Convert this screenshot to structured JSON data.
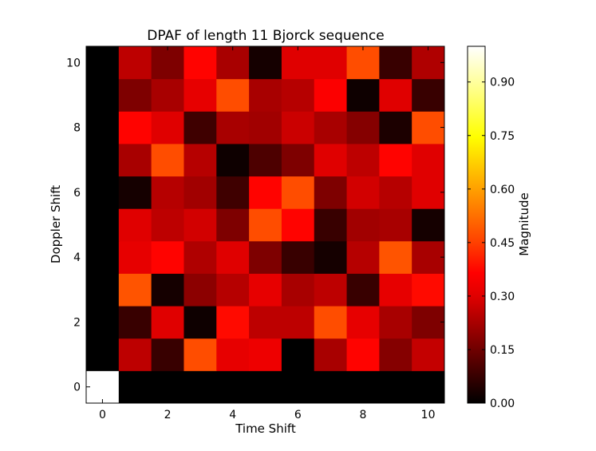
{
  "chart_data": {
    "type": "heatmap",
    "title": "DPAF of length 11 Bjorck sequence",
    "xlabel": "Time Shift",
    "ylabel": "Doppler Shift",
    "colorbar_label": "Magnitude",
    "colormap": "hot",
    "x_ticks": [
      "0",
      "2",
      "4",
      "6",
      "8",
      "10"
    ],
    "y_ticks": [
      "0",
      "2",
      "4",
      "6",
      "8",
      "10"
    ],
    "colorbar_ticks": [
      "0.00",
      "0.15",
      "0.30",
      "0.45",
      "0.60",
      "0.75",
      "0.90"
    ],
    "value_range": [
      0,
      1
    ],
    "x": [
      0,
      1,
      2,
      3,
      4,
      5,
      6,
      7,
      8,
      9,
      10
    ],
    "y": [
      0,
      1,
      2,
      3,
      4,
      5,
      6,
      7,
      8,
      9,
      10
    ],
    "grid": false,
    "values": [
      [
        1.0,
        0.0,
        0.0,
        0.0,
        0.0,
        0.0,
        0.0,
        0.0,
        0.0,
        0.0,
        0.0
      ],
      [
        0.0,
        0.27,
        0.08,
        0.48,
        0.33,
        0.34,
        0.0,
        0.24,
        0.37,
        0.19,
        0.28
      ],
      [
        0.0,
        0.08,
        0.32,
        0.02,
        0.38,
        0.27,
        0.27,
        0.48,
        0.33,
        0.24,
        0.18
      ],
      [
        0.0,
        0.49,
        0.03,
        0.2,
        0.26,
        0.33,
        0.24,
        0.27,
        0.08,
        0.33,
        0.38
      ],
      [
        0.0,
        0.33,
        0.37,
        0.25,
        0.32,
        0.18,
        0.08,
        0.03,
        0.26,
        0.49,
        0.24
      ],
      [
        0.0,
        0.32,
        0.27,
        0.3,
        0.18,
        0.48,
        0.37,
        0.08,
        0.23,
        0.24,
        0.03
      ],
      [
        0.0,
        0.03,
        0.26,
        0.23,
        0.09,
        0.37,
        0.48,
        0.18,
        0.3,
        0.26,
        0.32
      ],
      [
        0.0,
        0.24,
        0.48,
        0.26,
        0.02,
        0.11,
        0.18,
        0.32,
        0.27,
        0.37,
        0.32
      ],
      [
        0.0,
        0.37,
        0.32,
        0.09,
        0.24,
        0.23,
        0.29,
        0.24,
        0.19,
        0.04,
        0.48
      ],
      [
        0.0,
        0.18,
        0.24,
        0.33,
        0.48,
        0.24,
        0.26,
        0.36,
        0.02,
        0.32,
        0.08
      ],
      [
        0.0,
        0.27,
        0.18,
        0.37,
        0.24,
        0.03,
        0.32,
        0.32,
        0.48,
        0.08,
        0.25
      ]
    ]
  }
}
